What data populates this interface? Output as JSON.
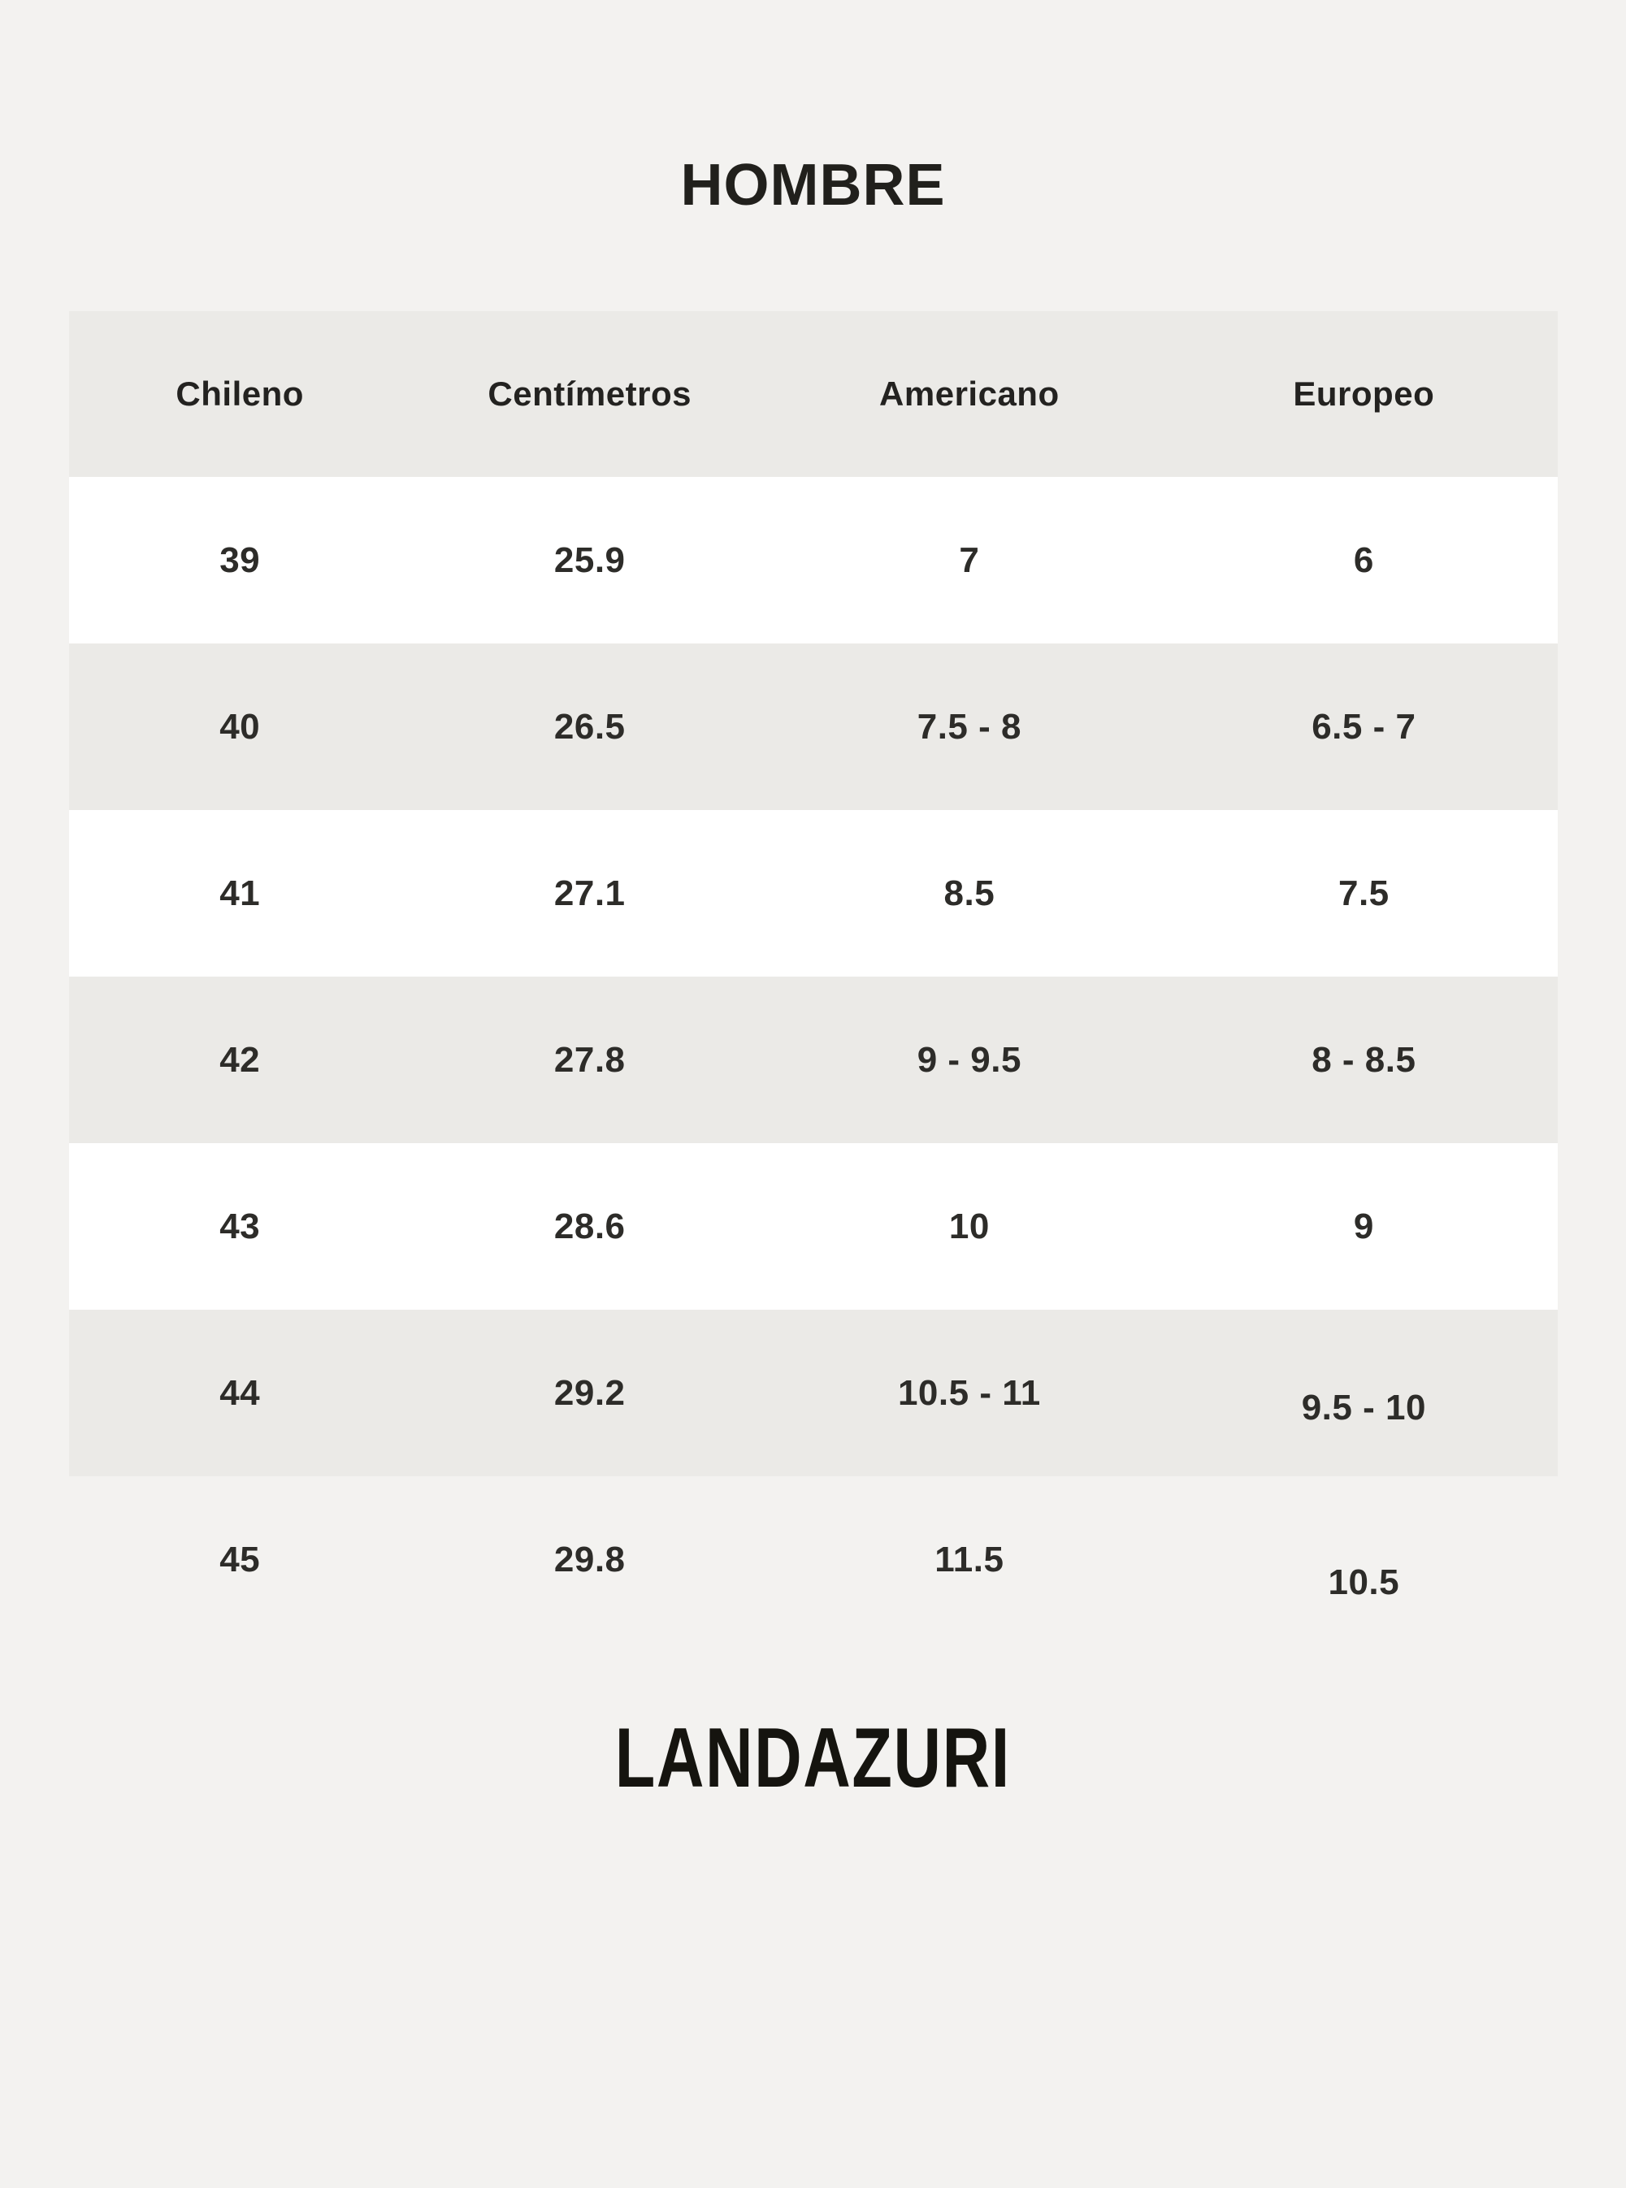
{
  "title": "HOMBRE",
  "footer_brand": "LANDAZURI",
  "chart_data": {
    "type": "table",
    "title": "HOMBRE",
    "columns": [
      "Chileno",
      "Centímetros",
      "Americano",
      "Europeo"
    ],
    "rows": [
      [
        "39",
        "25.9",
        "7",
        "6"
      ],
      [
        "40",
        "26.5",
        "7.5 - 8",
        "6.5 - 7"
      ],
      [
        "41",
        "27.1",
        "8.5",
        "7.5"
      ],
      [
        "42",
        "27.8",
        "9 - 9.5",
        "8 - 8.5"
      ],
      [
        "43",
        "28.6",
        "10",
        "9"
      ],
      [
        "44",
        "29.2",
        "10.5 - 11",
        "9.5 - 10"
      ],
      [
        "45",
        "29.8",
        "11.5",
        "10.5"
      ]
    ]
  },
  "colors": {
    "page_background": "#f3f2f0",
    "band_background": "#ebeae7",
    "row_white": "#ffffff",
    "text": "#2d2c29",
    "title_text": "#21201c",
    "brand_text": "#15140f"
  }
}
